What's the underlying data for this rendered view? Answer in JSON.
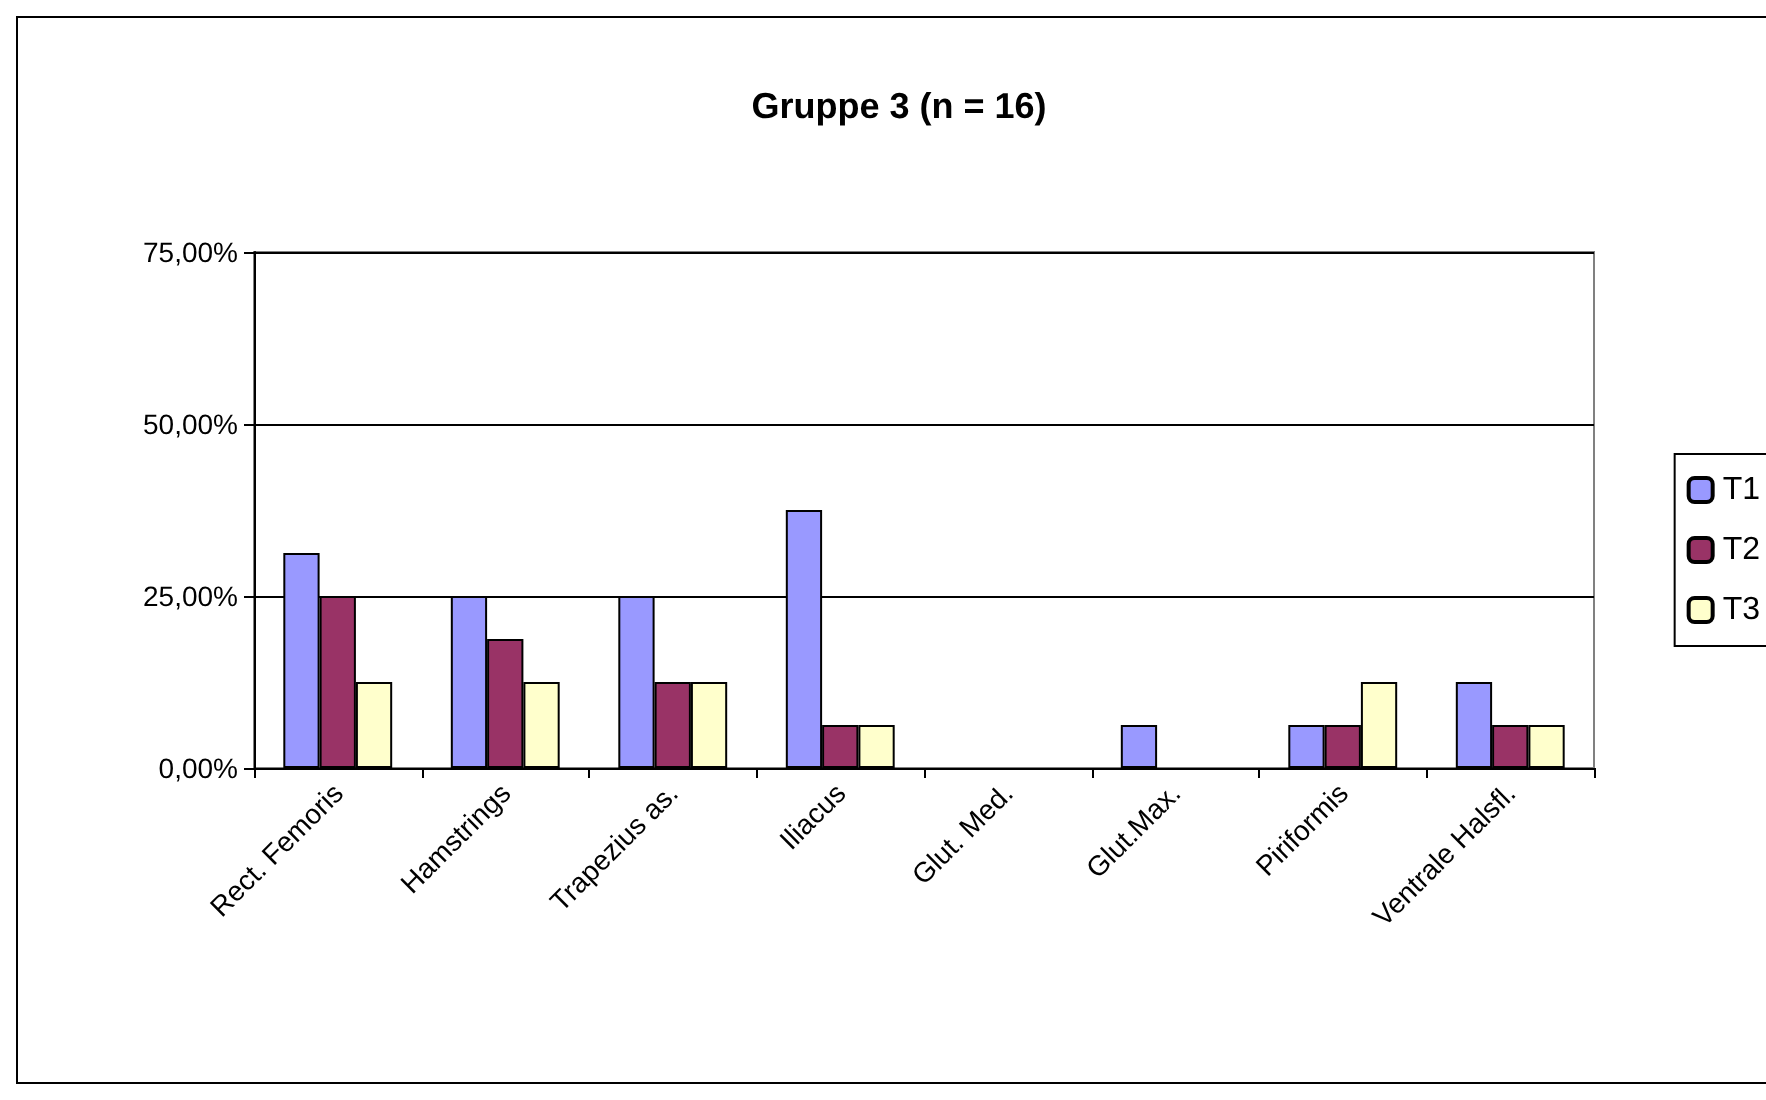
{
  "chart_data": {
    "type": "bar",
    "title": "Gruppe 3 (n = 16)",
    "categories": [
      "Rect. Femoris",
      "Hamstrings",
      "Trapezius as.",
      "Iliacus",
      "Glut. Med.",
      "Glut.Max.",
      "Piriformis",
      "Ventrale Halsfl."
    ],
    "series": [
      {
        "name": "T1",
        "color": "#9999ff",
        "values": [
          31.25,
          25,
          25,
          37.5,
          0,
          6.25,
          6.25,
          12.5
        ]
      },
      {
        "name": "T2",
        "color": "#993366",
        "values": [
          25,
          18.75,
          12.5,
          6.25,
          0,
          0,
          6.25,
          6.25
        ]
      },
      {
        "name": "T3",
        "color": "#ffffcc",
        "values": [
          12.5,
          12.5,
          12.5,
          6.25,
          0,
          0,
          12.5,
          6.25
        ]
      }
    ],
    "ylim": [
      0,
      75
    ],
    "yticks": [
      {
        "value": 0,
        "label": "0,00%"
      },
      {
        "value": 25,
        "label": "25,00%"
      },
      {
        "value": 50,
        "label": "50,00%"
      },
      {
        "value": 75,
        "label": "75,00%"
      }
    ],
    "grid": "y",
    "legend": "right"
  }
}
